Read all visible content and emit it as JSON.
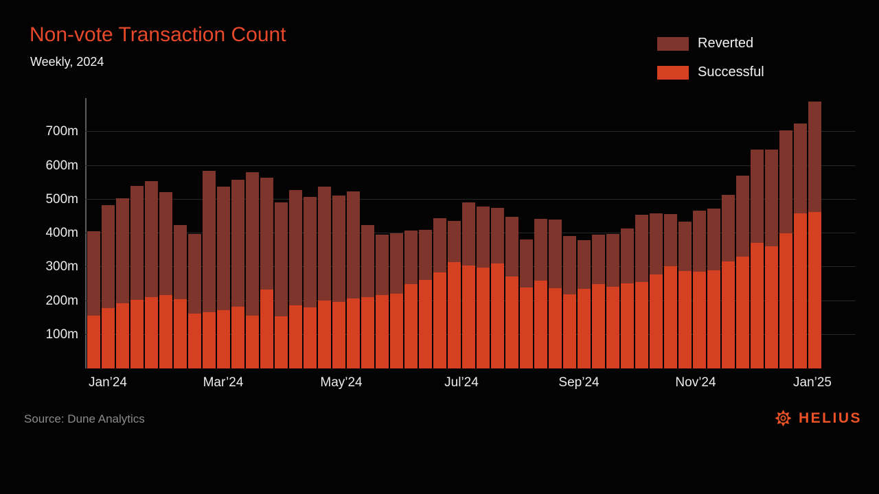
{
  "header": {
    "title": "Non-vote Transaction Count",
    "subtitle": "Weekly, 2024"
  },
  "legend": {
    "items": [
      {
        "label": "Reverted",
        "color": "#7e352b"
      },
      {
        "label": "Successful",
        "color": "#d54023"
      }
    ]
  },
  "footer": {
    "source": "Source: Dune Analytics",
    "brand": "HELIUS"
  },
  "colors": {
    "background": "#030303",
    "title": "#e8492b",
    "text": "#f2f2f2",
    "gridline": "#282828",
    "axis_line": "#5c5c5c",
    "source_text": "#8b8b8b",
    "brand": "#ee5227"
  },
  "chart_data": {
    "type": "bar",
    "stacked": true,
    "title": "Non-vote Transaction Count",
    "subtitle": "Weekly, 2024",
    "unit": "millions of transactions per week",
    "grid": true,
    "legend_position": "top-right",
    "y_axis": {
      "min": 0,
      "max": 800,
      "tick_step": 100,
      "tick_labels": [
        "100m",
        "200m",
        "300m",
        "400m",
        "500m",
        "600m",
        "700m"
      ]
    },
    "x_axis": {
      "ticks": [
        {
          "label": "Jan’24",
          "x": 157
        },
        {
          "label": "Mar’24",
          "x": 325
        },
        {
          "label": "May’24",
          "x": 497
        },
        {
          "label": "Jul’24",
          "x": 672
        },
        {
          "label": "Sep’24",
          "x": 843
        },
        {
          "label": "Nov’24",
          "x": 1013
        },
        {
          "label": "Jan’25",
          "x": 1183
        }
      ]
    },
    "series": [
      {
        "name": "Successful",
        "color": "#d54023",
        "values": [
          157,
          178,
          192,
          204,
          212,
          218,
          205,
          163,
          167,
          172,
          182,
          157,
          233,
          155,
          186,
          180,
          202,
          198,
          208,
          212,
          218,
          222,
          250,
          262,
          285,
          315,
          305,
          298,
          310,
          272,
          239,
          259,
          238,
          220,
          235,
          250,
          241,
          251,
          255,
          278,
          303,
          289,
          287,
          290,
          316,
          330,
          372,
          362,
          400,
          458,
          462
        ]
      },
      {
        "name": "Reverted",
        "color": "#7e352b",
        "values": [
          249,
          305,
          311,
          336,
          343,
          304,
          219,
          235,
          418,
          366,
          376,
          423,
          332,
          337,
          341,
          327,
          337,
          314,
          316,
          212,
          178,
          179,
          158,
          149,
          160,
          122,
          187,
          181,
          166,
          177,
          143,
          184,
          203,
          172,
          144,
          146,
          157,
          163,
          200,
          180,
          154,
          146,
          180,
          183,
          197,
          240,
          276,
          286,
          305,
          266,
          328
        ]
      }
    ],
    "totals": [
      406,
      483,
      503,
      540,
      555,
      522,
      424,
      398,
      585,
      538,
      558,
      580,
      565,
      492,
      527,
      507,
      539,
      512,
      524,
      424,
      396,
      401,
      408,
      411,
      445,
      437,
      492,
      479,
      476,
      449,
      382,
      443,
      441,
      392,
      379,
      396,
      398,
      414,
      455,
      458,
      457,
      435,
      467,
      473,
      513,
      570,
      648,
      648,
      705,
      724,
      790
    ]
  }
}
